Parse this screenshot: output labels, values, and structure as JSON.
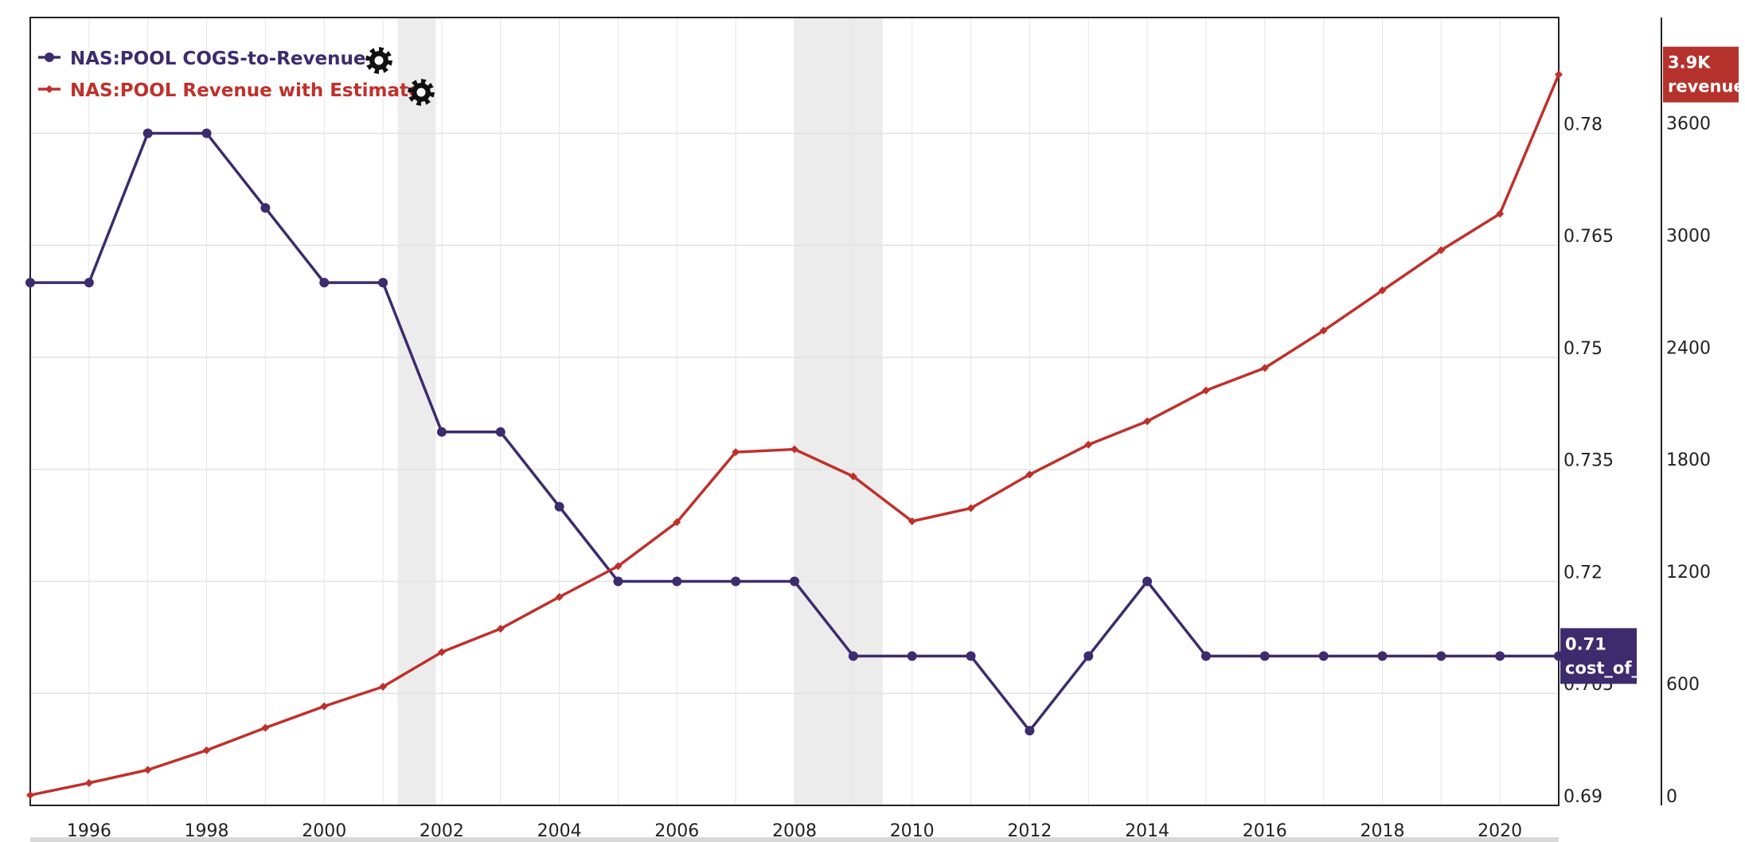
{
  "chart_data": {
    "type": "line",
    "x": [
      1995,
      1996,
      1997,
      1998,
      1999,
      2000,
      2001,
      2002,
      2003,
      2004,
      2005,
      2006,
      2007,
      2008,
      2009,
      2010,
      2011,
      2012,
      2013,
      2014,
      2015,
      2016,
      2017,
      2018,
      2019,
      2020,
      2021
    ],
    "x_tick_labels": [
      "1996",
      "1998",
      "2000",
      "2002",
      "2004",
      "2006",
      "2008",
      "2010",
      "2012",
      "2014",
      "2016",
      "2018",
      "2020"
    ],
    "xlim": [
      1995,
      2021
    ],
    "recession_bands": [
      [
        2001.25,
        2001.9
      ],
      [
        2008.0,
        2009.5
      ]
    ],
    "grid": true,
    "legend_position": "top-left",
    "series": [
      {
        "name": "NAS:POOL COGS-to-Revenue",
        "color": "#3d2b6e",
        "marker": "circle",
        "axis": "left",
        "values": [
          0.76,
          0.76,
          0.78,
          0.78,
          0.77,
          0.76,
          0.76,
          0.74,
          0.74,
          0.73,
          0.72,
          0.72,
          0.72,
          0.72,
          0.71,
          0.71,
          0.71,
          0.7,
          0.71,
          0.72,
          0.71,
          0.71,
          0.71,
          0.71,
          0.71,
          0.71,
          0.71
        ]
      },
      {
        "name": "NAS:POOL Revenue with Estimate",
        "color": "#c0302b",
        "marker": "diamond",
        "axis": "right",
        "values": [
          55,
          120,
          190,
          295,
          415,
          530,
          635,
          820,
          945,
          1115,
          1280,
          1515,
          1890,
          1905,
          1760,
          1520,
          1590,
          1770,
          1930,
          2055,
          2220,
          2340,
          2540,
          2755,
          2970,
          3165,
          3910
        ]
      }
    ],
    "y_left": {
      "ticks": [
        "0.69",
        "0.705",
        "0.72",
        "0.735",
        "0.75",
        "0.765",
        "0.78"
      ],
      "ylim": [
        0.69,
        0.7955
      ]
    },
    "y_right": {
      "ticks": [
        "0",
        "600",
        "1200",
        "1800",
        "2400",
        "3000",
        "3600"
      ],
      "ylim": [
        0,
        4215
      ]
    },
    "end_tags": [
      {
        "line1": "3.9K",
        "line2": "revenue_",
        "color": "#b5322c",
        "axis": "right",
        "value": 3910
      },
      {
        "line1": "0.71",
        "line2": "cost_of_g",
        "color": "#3d2b6e",
        "axis": "left",
        "value": 0.71
      }
    ]
  }
}
